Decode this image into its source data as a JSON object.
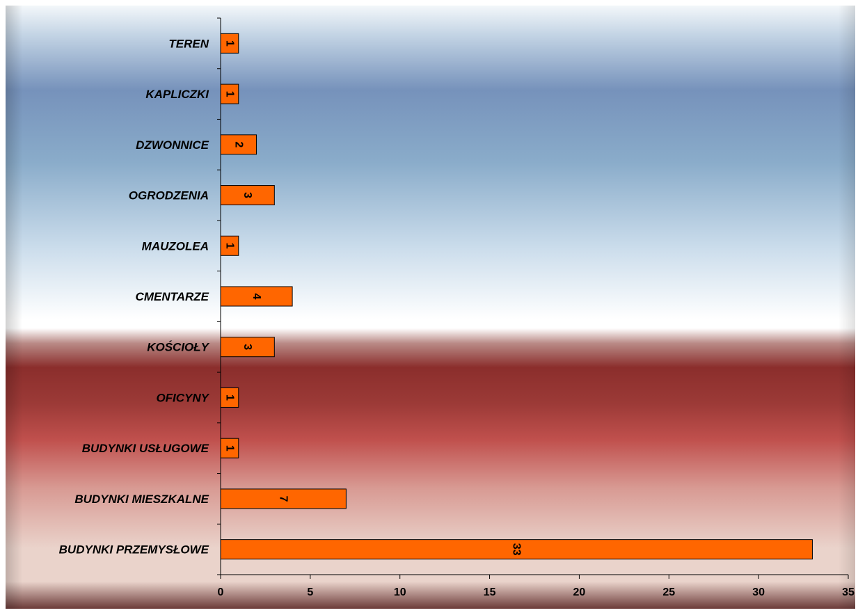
{
  "colors": {
    "bar_fill": "#ff6600",
    "bar_stroke": "#000000",
    "axis": "#000000",
    "top_band_light": "#f7fafc",
    "top_band_blue": "#7692bb",
    "bottom_band_dark": "#8b2e2c",
    "bottom_band_red": "#c0504d",
    "bottom_band_light": "#ead3cb",
    "bottom_edge_dark": "#6b3a38"
  },
  "chart_data": {
    "type": "bar",
    "orientation": "horizontal",
    "title": "",
    "xlabel": "",
    "ylabel": "",
    "categories": [
      "TEREN",
      "KAPLICZKI",
      "DZWONNICE",
      "OGRODZENIA",
      "MAUZOLEA",
      "CMENTARZE",
      "KOŚCIOŁY",
      "OFICYNY",
      "BUDYNKI USŁUGOWE",
      "BUDYNKI MIESZKALNE",
      "BUDYNKI PRZEMYSŁOWE"
    ],
    "values": [
      1,
      1,
      2,
      3,
      1,
      4,
      3,
      1,
      1,
      7,
      33
    ],
    "data_labels": [
      "1",
      "1",
      "2",
      "3",
      "1",
      "4",
      "3",
      "1",
      "1",
      "7",
      "33"
    ],
    "xlim": [
      0,
      35
    ],
    "xticks": [
      "0",
      "5",
      "10",
      "15",
      "20",
      "25",
      "30",
      "35"
    ],
    "xtick_values": [
      0,
      5,
      10,
      15,
      20,
      25,
      30,
      35
    ],
    "grid": false,
    "legend": "none",
    "data_label_rotation": "vertical"
  }
}
